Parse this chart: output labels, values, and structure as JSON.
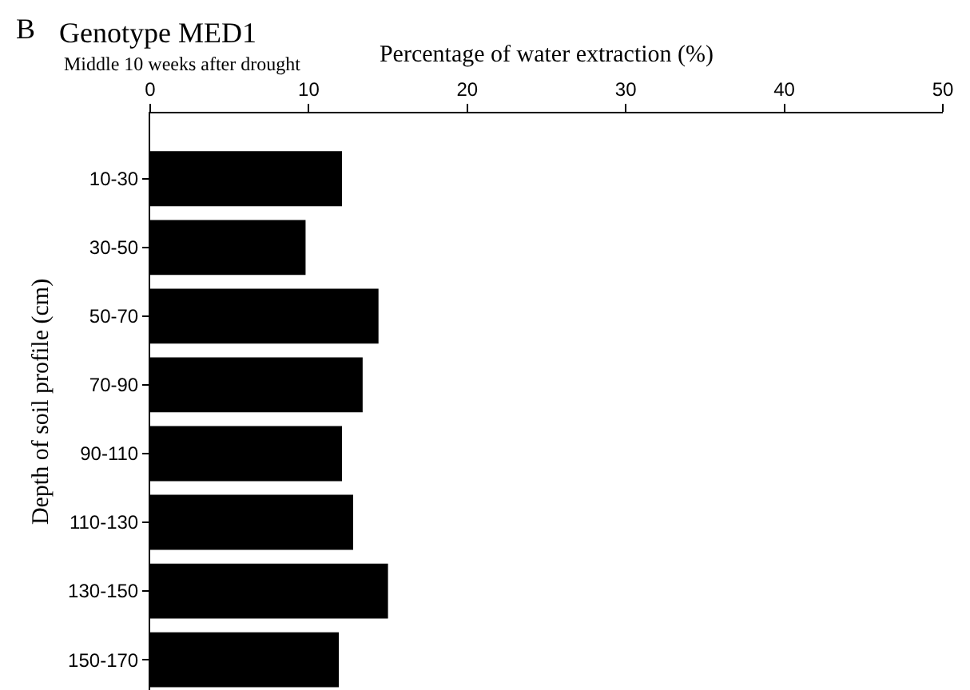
{
  "chart_data": {
    "type": "bar",
    "orientation": "horizontal",
    "title": "Genotype MED1",
    "subtitle": "Middle 10 weeks after drought",
    "xlabel": "Percentage of water extraction (%)",
    "ylabel": "Depth of soil profile (cm)",
    "annotations": [
      "B"
    ],
    "categories": [
      "10-30",
      "30-50",
      "50-70",
      "70-90",
      "90-110",
      "110-130",
      "130-150",
      "150-170"
    ],
    "values": [
      12.1,
      9.8,
      14.4,
      13.4,
      12.1,
      12.8,
      15.0,
      11.9
    ],
    "color": "#000000",
    "xlim": [
      0,
      50
    ],
    "xticks": [
      0,
      10,
      20,
      30,
      40,
      50
    ],
    "grid": false
  }
}
